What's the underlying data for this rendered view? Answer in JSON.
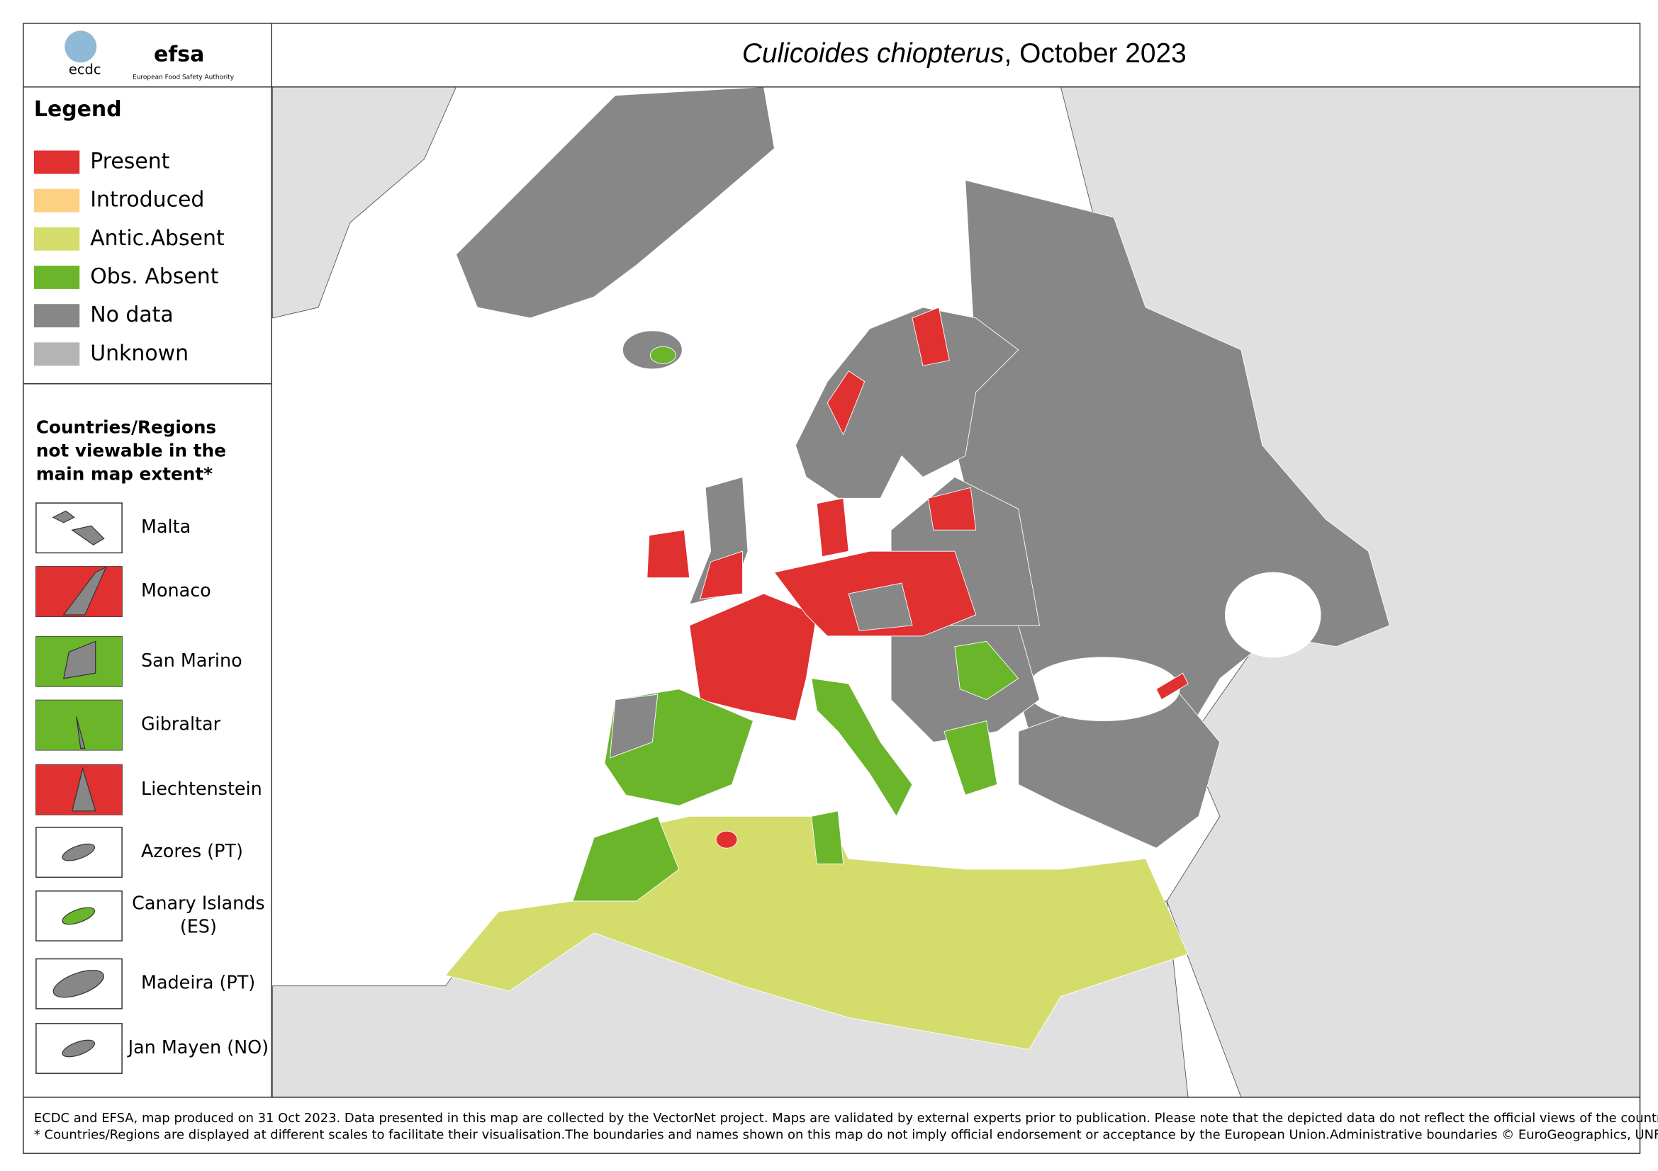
{
  "header": {
    "logo_left": "ecdc",
    "logo_right": "efsa",
    "logo_right_sub": "European Food Safety Authority",
    "title_species": "Culicoides chiopterus",
    "title_rest": ", October 2023"
  },
  "legend": {
    "title": "Legend",
    "items": [
      {
        "label": "Present",
        "color": "#e03030"
      },
      {
        "label": "Introduced",
        "color": "#fdd183"
      },
      {
        "label": "Antic.Absent",
        "color": "#d4dc6c"
      },
      {
        "label": "Obs. Absent",
        "color": "#6ab52a"
      },
      {
        "label": "No data",
        "color": "#878787"
      },
      {
        "label": "Unknown",
        "color": "#b4b4b4"
      }
    ]
  },
  "insets": {
    "title_lines": [
      "Countries/Regions",
      "not viewable in the",
      "main map extent*"
    ],
    "items": [
      {
        "lines": [
          "Malta"
        ]
      },
      {
        "lines": [
          "Monaco"
        ]
      },
      {
        "lines": [
          "San Marino"
        ]
      },
      {
        "lines": [
          "Gibraltar"
        ]
      },
      {
        "lines": [
          "Liechtenstein"
        ]
      },
      {
        "lines": [
          "Azores (PT)"
        ]
      },
      {
        "lines": [
          "Canary Islands",
          "(ES)"
        ]
      },
      {
        "lines": [
          "Madeira (PT)"
        ]
      },
      {
        "lines": [
          "Jan Mayen (NO)"
        ]
      }
    ]
  },
  "footer": {
    "lines": [
      "ECDC and EFSA, map produced on 31 Oct 2023. Data presented in this map are collected by the VectorNet project. Maps are validated by external experts prior to publication. Please note that the depicted data do not reflect the official views of the countries.",
      "* Countries/Regions are displayed at different scales to facilitate their visualisation.The boundaries and names shown on this map do not imply official endorsement or acceptance by the European Union.Administrative boundaries © EuroGeographics, UNFAO."
    ]
  }
}
